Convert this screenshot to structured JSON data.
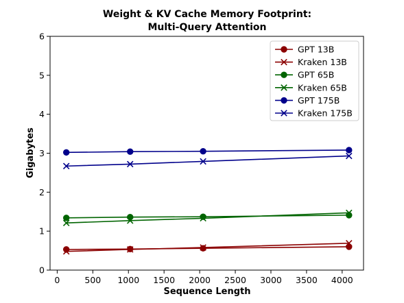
{
  "chart_data": {
    "type": "line",
    "title_line1": "Weight & KV Cache Memory Footprint:",
    "title_line2": "Multi-Query Attention",
    "xlabel": "Sequence Length",
    "ylabel": "Gigabytes",
    "xlim": [
      -100,
      4300
    ],
    "ylim": [
      0,
      6
    ],
    "xticks": [
      0,
      500,
      1000,
      1500,
      2000,
      2500,
      3000,
      3500,
      4000
    ],
    "yticks": [
      0,
      1,
      2,
      3,
      4,
      5,
      6
    ],
    "grid": false,
    "legend_position": "top-right",
    "x": [
      128,
      1024,
      2048,
      4096
    ],
    "series": [
      {
        "name": "GPT 13B",
        "marker": "circle",
        "color": "#8b0000",
        "values": [
          0.53,
          0.54,
          0.56,
          0.6
        ]
      },
      {
        "name": "Kraken 13B",
        "marker": "x",
        "color": "#8b0000",
        "values": [
          0.48,
          0.53,
          0.58,
          0.69
        ]
      },
      {
        "name": "GPT 65B",
        "marker": "circle",
        "color": "#006400",
        "values": [
          1.34,
          1.36,
          1.37,
          1.41
        ]
      },
      {
        "name": "Kraken 65B",
        "marker": "x",
        "color": "#006400",
        "values": [
          1.21,
          1.27,
          1.33,
          1.47
        ]
      },
      {
        "name": "GPT 175B",
        "marker": "circle",
        "color": "#00008b",
        "values": [
          3.02,
          3.04,
          3.05,
          3.08
        ]
      },
      {
        "name": "Kraken 175B",
        "marker": "x",
        "color": "#00008b",
        "values": [
          2.67,
          2.72,
          2.79,
          2.93
        ]
      }
    ]
  }
}
